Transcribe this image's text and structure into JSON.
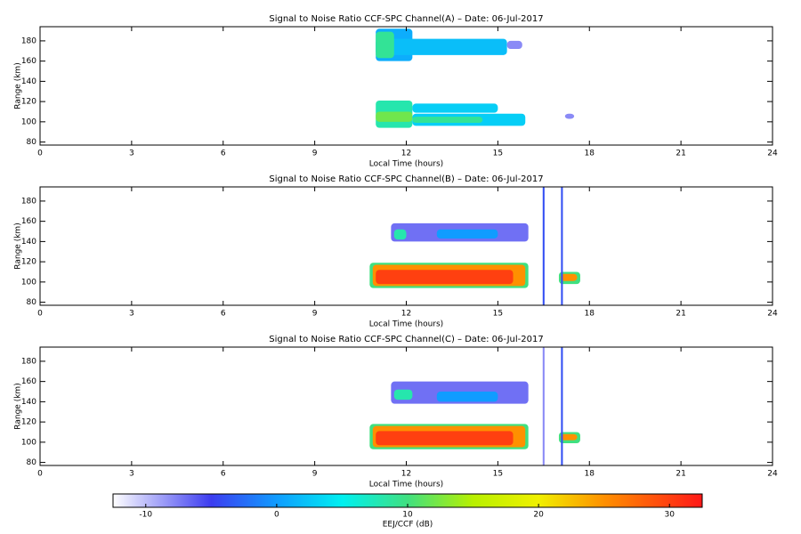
{
  "chart_data": [
    {
      "type": "heatmap",
      "title": "Signal to Noise Ratio CCF-SPC Channel(A) – Date: 06-Jul-2017",
      "xlabel": "Local Time (hours)",
      "ylabel": "Range (km)",
      "xlim": [
        0,
        24
      ],
      "xticks": [
        0,
        3,
        6,
        9,
        12,
        15,
        18,
        21,
        24
      ],
      "ylim": [
        77,
        194
      ],
      "yticks": [
        80,
        100,
        120,
        140,
        160,
        180
      ],
      "cells": [
        {
          "x": [
            11.0,
            12.2
          ],
          "y": [
            160,
            192
          ],
          "value": 1
        },
        {
          "x": [
            11.0,
            15.3
          ],
          "y": [
            166,
            182
          ],
          "value": 2
        },
        {
          "x": [
            15.3,
            15.8
          ],
          "y": [
            172,
            180
          ],
          "value": -8
        },
        {
          "x": [
            11.0,
            11.6
          ],
          "y": [
            163,
            189
          ],
          "value": 9
        },
        {
          "x": [
            11.0,
            12.2
          ],
          "y": [
            94,
            121
          ],
          "value": 8
        },
        {
          "x": [
            12.2,
            15.0
          ],
          "y": [
            109,
            118
          ],
          "value": 3
        },
        {
          "x": [
            12.2,
            15.9
          ],
          "y": [
            96,
            108
          ],
          "value": 3
        },
        {
          "x": [
            12.2,
            14.5
          ],
          "y": [
            99,
            105
          ],
          "value": 9
        },
        {
          "x": [
            11.0,
            12.2
          ],
          "y": [
            100,
            110
          ],
          "value": 12
        },
        {
          "x": [
            17.2,
            17.5
          ],
          "y": [
            103,
            108
          ],
          "value": -8
        }
      ]
    },
    {
      "type": "heatmap",
      "title": "Signal to Noise Ratio CCF-SPC Channel(B) – Date: 06-Jul-2017",
      "xlabel": "Local Time (hours)",
      "ylabel": "Range (km)",
      "xlim": [
        0,
        24
      ],
      "xticks": [
        0,
        3,
        6,
        9,
        12,
        15,
        18,
        21,
        24
      ],
      "ylim": [
        77,
        194
      ],
      "yticks": [
        80,
        100,
        120,
        140,
        160,
        180
      ],
      "cells": [
        {
          "x": [
            11.5,
            16.0
          ],
          "y": [
            140,
            158
          ],
          "value": -7
        },
        {
          "x": [
            11.6,
            12.0
          ],
          "y": [
            142,
            152
          ],
          "value": 8
        },
        {
          "x": [
            13.0,
            15.0
          ],
          "y": [
            143,
            152
          ],
          "value": 0
        },
        {
          "x": [
            10.8,
            16.0
          ],
          "y": [
            94,
            119
          ],
          "value": 10
        },
        {
          "x": [
            10.9,
            15.9
          ],
          "y": [
            96,
            117
          ],
          "value": 25
        },
        {
          "x": [
            11.0,
            15.5
          ],
          "y": [
            98,
            112
          ],
          "value": 30
        },
        {
          "x": [
            17.0,
            17.7
          ],
          "y": [
            98,
            110
          ],
          "value": 10
        },
        {
          "x": [
            17.05,
            17.6
          ],
          "y": [
            101,
            108
          ],
          "value": 25
        },
        {
          "x": [
            16.47,
            16.53
          ],
          "y": [
            77,
            194
          ],
          "value": -4
        },
        {
          "x": [
            17.07,
            17.13
          ],
          "y": [
            77,
            194
          ],
          "value": -4
        }
      ]
    },
    {
      "type": "heatmap",
      "title": "Signal to Noise Ratio CCF-SPC Channel(C) – Date: 06-Jul-2017",
      "xlabel": "Local Time (hours)",
      "ylabel": "Range (km)",
      "xlim": [
        0,
        24
      ],
      "xticks": [
        0,
        3,
        6,
        9,
        12,
        15,
        18,
        21,
        24
      ],
      "ylim": [
        77,
        194
      ],
      "yticks": [
        80,
        100,
        120,
        140,
        160,
        180
      ],
      "cells": [
        {
          "x": [
            11.5,
            16.0
          ],
          "y": [
            138,
            160
          ],
          "value": -7
        },
        {
          "x": [
            11.6,
            12.2
          ],
          "y": [
            142,
            152
          ],
          "value": 8
        },
        {
          "x": [
            13.0,
            15.0
          ],
          "y": [
            140,
            150
          ],
          "value": 0
        },
        {
          "x": [
            10.8,
            16.0
          ],
          "y": [
            93,
            118
          ],
          "value": 10
        },
        {
          "x": [
            10.9,
            15.9
          ],
          "y": [
            95,
            116
          ],
          "value": 25
        },
        {
          "x": [
            11.0,
            15.5
          ],
          "y": [
            97,
            111
          ],
          "value": 30
        },
        {
          "x": [
            17.0,
            17.7
          ],
          "y": [
            99,
            110
          ],
          "value": 10
        },
        {
          "x": [
            17.05,
            17.6
          ],
          "y": [
            102,
            108
          ],
          "value": 25
        },
        {
          "x": [
            16.47,
            16.53
          ],
          "y": [
            77,
            194
          ],
          "value": -8
        },
        {
          "x": [
            17.07,
            17.13
          ],
          "y": [
            77,
            194
          ],
          "value": -4
        }
      ]
    }
  ],
  "colorbar": {
    "label": "EEJ/CCF (dB)",
    "lim": [
      -12.5,
      32.5
    ],
    "ticks": [
      -10,
      0,
      10,
      20,
      30
    ],
    "colormap": [
      {
        "value": -12.5,
        "color": "#ffffff"
      },
      {
        "value": -5,
        "color": "#3c3cf0"
      },
      {
        "value": 0,
        "color": "#109cff"
      },
      {
        "value": 5,
        "color": "#00f0f0"
      },
      {
        "value": 10,
        "color": "#40e080"
      },
      {
        "value": 15,
        "color": "#b8f000"
      },
      {
        "value": 20,
        "color": "#f0f000"
      },
      {
        "value": 25,
        "color": "#ff9000"
      },
      {
        "value": 32.5,
        "color": "#ff1818"
      }
    ]
  }
}
